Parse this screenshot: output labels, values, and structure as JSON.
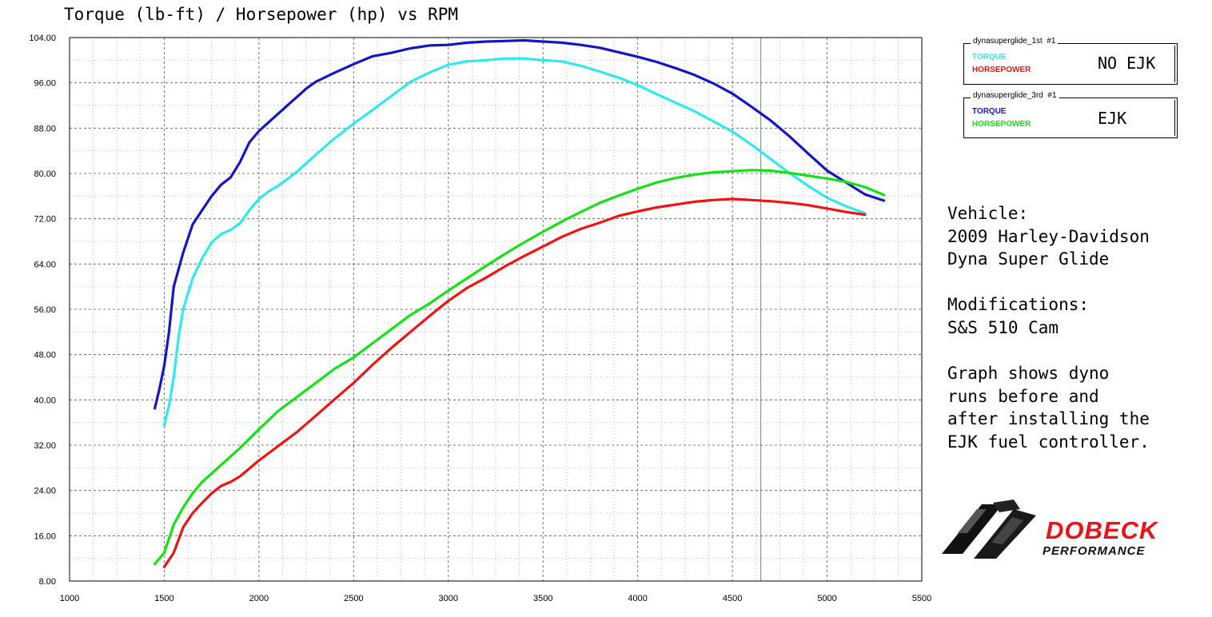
{
  "chart_data": {
    "type": "line",
    "title": "Torque (lb-ft) / Horsepower (hp) vs RPM",
    "xlabel": "",
    "ylabel": "",
    "xlim": [
      1000,
      5500
    ],
    "ylim": [
      8,
      104
    ],
    "x_ticks": [
      1000,
      1500,
      2000,
      2500,
      3000,
      3500,
      4000,
      4500,
      5000,
      5500
    ],
    "y_ticks": [
      "8.00",
      "16.00",
      "24.00",
      "32.00",
      "40.00",
      "48.00",
      "56.00",
      "64.00",
      "72.00",
      "80.00",
      "88.00",
      "96.00",
      "104.00"
    ],
    "grid": true,
    "cursor_rpm": 4650,
    "series": [
      {
        "run": "dynasuperglide_3rd",
        "name": "TORQUE",
        "color": "#1515c8",
        "x": [
          1450,
          1475,
          1500,
          1525,
          1550,
          1600,
          1650,
          1700,
          1750,
          1800,
          1850,
          1900,
          1950,
          2000,
          2050,
          2100,
          2150,
          2200,
          2250,
          2300,
          2400,
          2500,
          2600,
          2700,
          2800,
          2900,
          3000,
          3100,
          3200,
          3300,
          3400,
          3500,
          3600,
          3700,
          3800,
          3900,
          4000,
          4100,
          4200,
          4300,
          4400,
          4500,
          4600,
          4700,
          4800,
          4900,
          5000,
          5100,
          5200,
          5300
        ],
        "values": [
          38.5,
          42,
          46,
          52,
          60,
          66,
          71,
          73.5,
          76,
          78,
          79.3,
          82,
          85.5,
          87.5,
          89,
          90.5,
          92,
          93.5,
          95,
          96.2,
          97.8,
          99.3,
          100.7,
          101.3,
          102.1,
          102.6,
          102.7,
          103.1,
          103.3,
          103.4,
          103.5,
          103.3,
          103.1,
          102.7,
          102.2,
          101.4,
          100.6,
          99.7,
          98.6,
          97.4,
          95.9,
          94.1,
          91.8,
          89.4,
          86.6,
          83.5,
          80.5,
          78.4,
          76.3,
          75.2
        ]
      },
      {
        "run": "dynasuperglide_1st",
        "name": "TORQUE",
        "color": "#30e8f0",
        "x": [
          1500,
          1525,
          1550,
          1575,
          1600,
          1650,
          1700,
          1750,
          1800,
          1850,
          1900,
          1950,
          2000,
          2050,
          2100,
          2150,
          2200,
          2300,
          2400,
          2500,
          2600,
          2700,
          2800,
          2900,
          3000,
          3100,
          3200,
          3300,
          3400,
          3500,
          3600,
          3700,
          3800,
          3900,
          4000,
          4100,
          4200,
          4300,
          4400,
          4500,
          4600,
          4700,
          4800,
          4900,
          5000,
          5100,
          5200
        ],
        "values": [
          35.5,
          39,
          44,
          51,
          56,
          61.5,
          65,
          67.8,
          69.3,
          70,
          71.2,
          73.5,
          75.5,
          76.8,
          77.8,
          79,
          80.3,
          83.3,
          86.2,
          88.8,
          91.2,
          93.7,
          96.2,
          97.8,
          99.2,
          99.8,
          100,
          100.3,
          100.3,
          100,
          99.8,
          99,
          98,
          96.9,
          95.6,
          94,
          92.5,
          91,
          89.2,
          87.4,
          85.1,
          82.6,
          80.1,
          77.8,
          75.7,
          74.2,
          73
        ]
      },
      {
        "run": "dynasuperglide_3rd",
        "name": "HORSEPOWER",
        "color": "#16e016",
        "x": [
          1450,
          1500,
          1550,
          1600,
          1650,
          1700,
          1750,
          1800,
          1850,
          1900,
          2000,
          2100,
          2200,
          2300,
          2400,
          2500,
          2600,
          2700,
          2800,
          2900,
          3000,
          3100,
          3200,
          3300,
          3400,
          3500,
          3600,
          3700,
          3800,
          3900,
          4000,
          4100,
          4200,
          4300,
          4400,
          4500,
          4600,
          4700,
          4800,
          4900,
          5000,
          5100,
          5200,
          5300
        ],
        "values": [
          11,
          13,
          18,
          21,
          23.5,
          25.5,
          27,
          28.5,
          30,
          31.5,
          34.8,
          38,
          40.5,
          43,
          45.5,
          47.5,
          50,
          52.5,
          55,
          57,
          59.3,
          61.5,
          63.7,
          65.8,
          67.8,
          69.7,
          71.5,
          73.2,
          74.8,
          76.1,
          77.3,
          78.4,
          79.2,
          79.8,
          80.2,
          80.4,
          80.6,
          80.5,
          80.1,
          79.6,
          79.1,
          78.5,
          77.6,
          76.2
        ]
      },
      {
        "run": "dynasuperglide_1st",
        "name": "HORSEPOWER",
        "color": "#ee1414",
        "x": [
          1500,
          1550,
          1600,
          1650,
          1700,
          1750,
          1800,
          1850,
          1900,
          2000,
          2100,
          2200,
          2300,
          2400,
          2500,
          2600,
          2700,
          2800,
          2900,
          3000,
          3100,
          3200,
          3300,
          3400,
          3500,
          3600,
          3700,
          3800,
          3900,
          4000,
          4100,
          4200,
          4300,
          4400,
          4500,
          4600,
          4700,
          4800,
          4900,
          5000,
          5100,
          5200
        ],
        "values": [
          10.5,
          13,
          17.5,
          20,
          21.8,
          23.5,
          24.8,
          25.5,
          26.5,
          29.3,
          31.8,
          34.3,
          37.2,
          40.1,
          43,
          46.2,
          49.2,
          52,
          54.8,
          57.5,
          59.8,
          61.6,
          63.6,
          65.4,
          67.1,
          68.8,
          70.2,
          71.3,
          72.5,
          73.3,
          74,
          74.5,
          75,
          75.3,
          75.5,
          75.3,
          75.1,
          74.8,
          74.4,
          73.8,
          73.2,
          72.7
        ]
      }
    ]
  },
  "legend": [
    {
      "caption": "dynasuperglide_1st  #1",
      "items": [
        {
          "label": "TORQUE",
          "color": "#30e8f0"
        },
        {
          "label": "HORSEPOWER",
          "color": "#ee1414"
        }
      ],
      "tag": "NO EJK"
    },
    {
      "caption": "dynasuperglide_3rd  #1",
      "items": [
        {
          "label": "TORQUE",
          "color": "#1515c8"
        },
        {
          "label": "HORSEPOWER",
          "color": "#16e016"
        }
      ],
      "tag": "EJK"
    }
  ],
  "notes": {
    "vehicle_label": "Vehicle:",
    "vehicle_1": "2009 Harley-Davidson",
    "vehicle_2": "Dyna Super Glide",
    "mods_label": "Modifications:",
    "mods_1": "S&S 510 Cam",
    "desc_1": "Graph shows dyno",
    "desc_2": "runs before and",
    "desc_3": "after installing the",
    "desc_4": "EJK fuel controller."
  },
  "logo": {
    "line1": "DOBECK",
    "line2": "PERFORMANCE",
    "color": "#e8121a"
  }
}
